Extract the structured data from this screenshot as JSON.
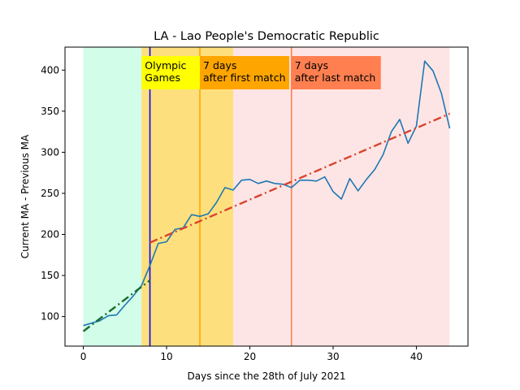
{
  "chart_data": {
    "type": "line",
    "title": "LA - Lao People's Democratic Republic",
    "xlabel": "Days since the 28th of July 2021",
    "ylabel": "Current MA - Previous MA",
    "xlim": [
      -2.2,
      46.2
    ],
    "ylim": [
      64,
      428
    ],
    "xticks": [
      0,
      10,
      20,
      30,
      40
    ],
    "yticks": [
      100,
      150,
      200,
      250,
      300,
      350,
      400
    ],
    "grid": false,
    "regions": [
      {
        "x0": 0,
        "x1": 7,
        "color": "#d1fde9"
      },
      {
        "x0": 7,
        "x1": 18,
        "color": "#fde07d"
      },
      {
        "x0": 18,
        "x1": 44,
        "color": "#fee5e5"
      }
    ],
    "vlines": [
      {
        "x": 8,
        "color": "#0000ff"
      },
      {
        "x": 14,
        "color": "#ffa500"
      },
      {
        "x": 25,
        "color": "#ff7f50"
      }
    ],
    "annotations": [
      {
        "x": 7,
        "lines": [
          "Olympic",
          "Games"
        ],
        "bg": "#ffff00"
      },
      {
        "x": 14,
        "lines": [
          "7 days",
          "after first match"
        ],
        "bg": "#ffa500"
      },
      {
        "x": 25,
        "lines": [
          "7 days",
          "after last match"
        ],
        "bg": "#ff7f50"
      }
    ],
    "series": [
      {
        "style": "solid",
        "color": "#1f77b4",
        "x": [
          0,
          1,
          2,
          3,
          4,
          5,
          6,
          7,
          8,
          9,
          10,
          11,
          12,
          13,
          14,
          15,
          16,
          17,
          18,
          19,
          20,
          21,
          22,
          23,
          24,
          25,
          26,
          27,
          28,
          29,
          30,
          31,
          32,
          33,
          34,
          35,
          36,
          37,
          38,
          39,
          40,
          41,
          42,
          43,
          44
        ],
        "y": [
          89,
          92,
          95,
          101,
          102,
          114,
          125,
          138,
          162,
          189,
          191,
          206,
          208,
          224,
          222,
          225,
          239,
          257,
          254,
          266,
          267,
          262,
          265,
          262,
          261,
          257,
          266,
          266,
          265,
          270,
          252,
          243,
          268,
          253,
          267,
          279,
          297,
          325,
          340,
          311,
          332,
          411,
          399,
          372,
          329
        ]
      },
      {
        "style": "dashdot",
        "color": "#1a6b2a",
        "x": [
          0,
          8
        ],
        "y": [
          82,
          144
        ]
      },
      {
        "style": "dashdot",
        "color": "#d9442e",
        "x": [
          8,
          44
        ],
        "y": [
          190,
          347
        ]
      }
    ]
  }
}
